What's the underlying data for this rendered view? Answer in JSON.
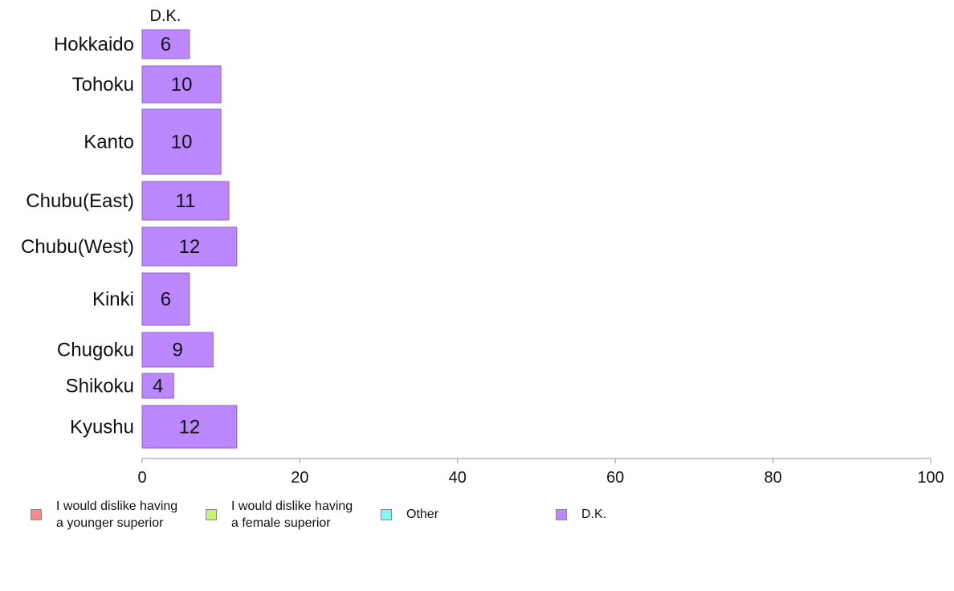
{
  "chart_data": {
    "type": "bar",
    "orientation": "horizontal",
    "column_label": "D.K.",
    "categories": [
      "Hokkaido",
      "Tohoku",
      "Kanto",
      "Chubu(East)",
      "Chubu(West)",
      "Kinki",
      "Chugoku",
      "Shikoku",
      "Kyushu"
    ],
    "series": [
      {
        "name": "D.K.",
        "values": [
          6,
          10,
          10,
          11,
          12,
          6,
          9,
          4,
          12
        ],
        "color": "#bb88ff"
      }
    ],
    "xlim": [
      0,
      100
    ],
    "xticks": [
      "0",
      "20",
      "40",
      "60",
      "80",
      "100"
    ],
    "legend_placement": "bottom",
    "grid": false
  },
  "legend": {
    "items": [
      {
        "lines": [
          "I would dislike having",
          "a younger superior"
        ],
        "color": "#f48a8a"
      },
      {
        "lines": [
          "I would dislike having",
          "a female superior"
        ],
        "color": "#c6f27e"
      },
      {
        "lines": [
          "Other"
        ],
        "color": "#86f6f8"
      },
      {
        "lines": [
          "D.K."
        ],
        "color": "#bb88ff"
      }
    ]
  }
}
